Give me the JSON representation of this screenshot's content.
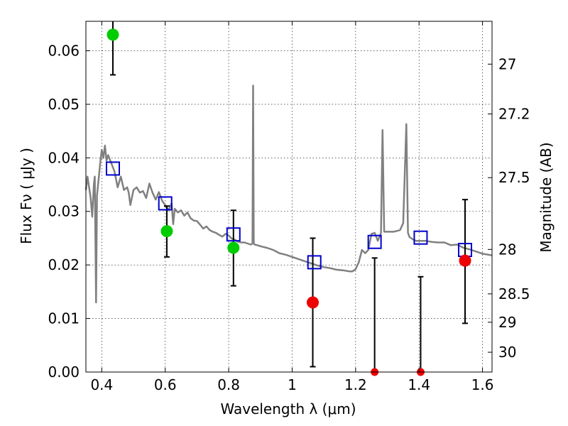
{
  "chart_data": {
    "type": "scatter",
    "title": "",
    "xlabel": "Wavelength  λ (μm)",
    "ylabel": "Flux  Fν  ( μJy )",
    "y2label": "Magnitude (AB)",
    "xlim": [
      0.35,
      1.63
    ],
    "ylim": [
      0,
      0.0655
    ],
    "grid": true,
    "x_ticks": [
      0.4,
      0.6,
      0.8,
      1.0,
      1.2,
      1.4,
      1.6
    ],
    "x_tick_labels": [
      "0.4",
      "0.6",
      "0.8",
      "1",
      "1.2",
      "1.4",
      "1.6"
    ],
    "y_ticks": [
      0,
      0.01,
      0.02,
      0.03,
      0.04,
      0.05,
      0.06
    ],
    "y_tick_labels": [
      "0.00",
      "0.01",
      "0.02",
      "0.03",
      "0.04",
      "0.05",
      "0.06"
    ],
    "y2_ticks": [
      {
        "label": "27",
        "flux": 0.0575
      },
      {
        "label": "27.2",
        "flux": 0.0482
      },
      {
        "label": "27.5",
        "flux": 0.0363
      },
      {
        "label": "28",
        "flux": 0.0229
      },
      {
        "label": "28.5",
        "flux": 0.0146
      },
      {
        "label": "29",
        "flux": 0.0093
      },
      {
        "label": "30",
        "flux": 0.0037
      }
    ],
    "series": [
      {
        "kind": "line",
        "color": "#808080",
        "x": [
          0.35,
          0.355,
          0.36,
          0.365,
          0.37,
          0.375,
          0.378,
          0.382,
          0.385,
          0.39,
          0.395,
          0.4,
          0.405,
          0.41,
          0.415,
          0.42,
          0.43,
          0.44,
          0.45,
          0.46,
          0.47,
          0.48,
          0.485,
          0.49,
          0.5,
          0.51,
          0.52,
          0.53,
          0.54,
          0.55,
          0.56,
          0.57,
          0.58,
          0.59,
          0.6,
          0.61,
          0.62,
          0.625,
          0.63,
          0.64,
          0.65,
          0.66,
          0.67,
          0.68,
          0.69,
          0.7,
          0.71,
          0.72,
          0.73,
          0.74,
          0.75,
          0.76,
          0.77,
          0.78,
          0.79,
          0.8,
          0.81,
          0.82,
          0.83,
          0.84,
          0.85,
          0.86,
          0.87,
          0.875,
          0.877,
          0.879,
          0.882,
          0.89,
          0.9,
          0.92,
          0.94,
          0.96,
          0.98,
          1.0,
          1.02,
          1.04,
          1.06,
          1.08,
          1.1,
          1.12,
          1.14,
          1.16,
          1.18,
          1.19,
          1.2,
          1.21,
          1.22,
          1.23,
          1.24,
          1.25,
          1.26,
          1.27,
          1.28,
          1.285,
          1.29,
          1.3,
          1.32,
          1.34,
          1.35,
          1.36,
          1.365,
          1.37,
          1.38,
          1.39,
          1.4,
          1.42,
          1.44,
          1.46,
          1.48,
          1.5,
          1.52,
          1.54,
          1.56,
          1.58,
          1.6,
          1.63
        ],
        "y": [
          0.034,
          0.0365,
          0.0345,
          0.0325,
          0.029,
          0.035,
          0.0365,
          0.013,
          0.033,
          0.036,
          0.039,
          0.0415,
          0.04,
          0.0423,
          0.0395,
          0.0405,
          0.039,
          0.0375,
          0.0345,
          0.0365,
          0.034,
          0.0345,
          0.0335,
          0.0312,
          0.034,
          0.0345,
          0.0335,
          0.0338,
          0.0325,
          0.0352,
          0.0335,
          0.0322,
          0.0336,
          0.032,
          0.0312,
          0.0302,
          0.0315,
          0.0276,
          0.0305,
          0.0298,
          0.0302,
          0.0292,
          0.0298,
          0.0287,
          0.0283,
          0.0282,
          0.0275,
          0.0268,
          0.0272,
          0.0265,
          0.0262,
          0.026,
          0.0256,
          0.0253,
          0.0258,
          0.0255,
          0.0249,
          0.0247,
          0.0243,
          0.0242,
          0.0242,
          0.024,
          0.0238,
          0.024,
          0.0535,
          0.024,
          0.0238,
          0.0237,
          0.0235,
          0.0232,
          0.0228,
          0.0222,
          0.0219,
          0.0215,
          0.0211,
          0.0207,
          0.0203,
          0.0199,
          0.0196,
          0.0194,
          0.0191,
          0.019,
          0.0188,
          0.0188,
          0.0192,
          0.0205,
          0.0228,
          0.0222,
          0.0228,
          0.0258,
          0.026,
          0.0245,
          0.026,
          0.0452,
          0.0262,
          0.0262,
          0.0262,
          0.0265,
          0.0278,
          0.0463,
          0.026,
          0.0252,
          0.0248,
          0.0245,
          0.0245,
          0.0245,
          0.0243,
          0.0242,
          0.0242,
          0.0237,
          0.0238,
          0.0232,
          0.0229,
          0.0225,
          0.0221,
          0.0218
        ]
      },
      {
        "kind": "square",
        "color": "#0000cc",
        "x": [
          0.435,
          0.6,
          0.815,
          1.07,
          1.26,
          1.405,
          1.545
        ],
        "y": [
          0.038,
          0.0315,
          0.0257,
          0.0205,
          0.0243,
          0.0251,
          0.0228
        ]
      },
      {
        "kind": "circle",
        "color": "#00cc00",
        "x": [
          0.435,
          0.605,
          0.815
        ],
        "y": [
          0.063,
          0.0263,
          0.0232
        ],
        "yerr_low": [
          0.0555,
          0.0215,
          0.0161
        ],
        "yerr_high": [
          0.0655,
          0.031,
          0.0302
        ]
      },
      {
        "kind": "circle",
        "color": "#ee0000",
        "x": [
          1.065,
          1.26,
          1.405,
          1.545
        ],
        "y": [
          0.013,
          0.0,
          0.0,
          0.0208
        ],
        "yerr_low": [
          0.001,
          0.0,
          0.0,
          0.0091
        ],
        "yerr_high": [
          0.025,
          0.0213,
          0.0178,
          0.0322
        ]
      }
    ]
  }
}
